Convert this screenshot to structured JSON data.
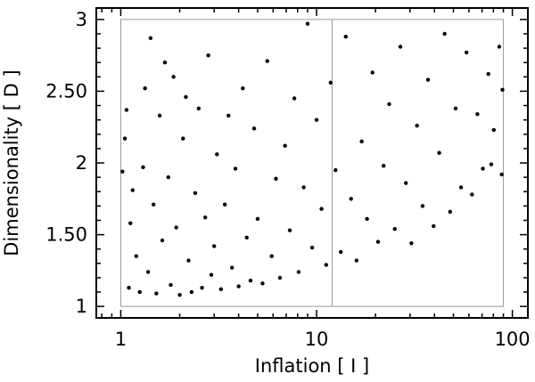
{
  "chart_data": {
    "type": "scatter",
    "title": "",
    "xlabel": "Inflation [ I ]",
    "ylabel": "Dimensionality [ D ]",
    "x_scale": "log",
    "xlim": [
      0.75,
      120
    ],
    "ylim": [
      0.92,
      3.08
    ],
    "x_ticks": [
      {
        "value": 1,
        "label": "1"
      },
      {
        "value": 10,
        "label": "10"
      },
      {
        "value": 100,
        "label": "100"
      }
    ],
    "y_ticks": [
      {
        "value": 1,
        "label": "1"
      },
      {
        "value": 1.5,
        "label": "1.50"
      },
      {
        "value": 2,
        "label": "2"
      },
      {
        "value": 2.5,
        "label": "2.50"
      },
      {
        "value": 3,
        "label": "3"
      }
    ],
    "grid": false,
    "legend": "none",
    "marker_color": "#000000",
    "reference_box": {
      "x": [
        1,
        90
      ],
      "y": [
        1,
        3
      ]
    },
    "reference_line_x": 12,
    "series": [
      {
        "points": [
          [
            1.02,
            1.94
          ],
          [
            1.05,
            2.17
          ],
          [
            1.07,
            2.37
          ],
          [
            1.1,
            1.13
          ],
          [
            1.12,
            1.58
          ],
          [
            1.15,
            1.81
          ],
          [
            1.2,
            1.35
          ],
          [
            1.25,
            1.1
          ],
          [
            1.3,
            1.97
          ],
          [
            1.33,
            2.52
          ],
          [
            1.38,
            1.24
          ],
          [
            1.42,
            2.87
          ],
          [
            1.47,
            1.71
          ],
          [
            1.52,
            1.09
          ],
          [
            1.58,
            2.33
          ],
          [
            1.63,
            1.46
          ],
          [
            1.68,
            2.7
          ],
          [
            1.75,
            1.9
          ],
          [
            1.8,
            1.15
          ],
          [
            1.86,
            2.6
          ],
          [
            1.92,
            1.55
          ],
          [
            2.0,
            1.08
          ],
          [
            2.08,
            2.17
          ],
          [
            2.15,
            2.46
          ],
          [
            2.22,
            1.32
          ],
          [
            2.3,
            1.1
          ],
          [
            2.4,
            1.79
          ],
          [
            2.5,
            2.38
          ],
          [
            2.6,
            1.13
          ],
          [
            2.7,
            1.62
          ],
          [
            2.8,
            2.75
          ],
          [
            2.9,
            1.22
          ],
          [
            3.0,
            1.42
          ],
          [
            3.1,
            2.06
          ],
          [
            3.25,
            1.12
          ],
          [
            3.4,
            1.71
          ],
          [
            3.55,
            2.33
          ],
          [
            3.7,
            1.27
          ],
          [
            3.85,
            1.96
          ],
          [
            4.0,
            1.14
          ],
          [
            4.2,
            2.52
          ],
          [
            4.4,
            1.48
          ],
          [
            4.6,
            1.18
          ],
          [
            4.8,
            2.24
          ],
          [
            5.0,
            1.61
          ],
          [
            5.3,
            1.16
          ],
          [
            5.6,
            2.71
          ],
          [
            5.9,
            1.35
          ],
          [
            6.2,
            1.89
          ],
          [
            6.5,
            1.2
          ],
          [
            6.9,
            2.12
          ],
          [
            7.3,
            1.53
          ],
          [
            7.7,
            2.45
          ],
          [
            8.1,
            1.24
          ],
          [
            8.6,
            1.83
          ],
          [
            9.0,
            2.97
          ],
          [
            9.5,
            1.41
          ],
          [
            10.0,
            2.3
          ],
          [
            10.6,
            1.68
          ],
          [
            11.2,
            1.29
          ],
          [
            11.8,
            2.56
          ],
          [
            12.5,
            1.95
          ],
          [
            13.3,
            1.38
          ],
          [
            14.1,
            2.88
          ],
          [
            15.0,
            1.75
          ],
          [
            16.0,
            1.32
          ],
          [
            17.0,
            2.15
          ],
          [
            18.1,
            1.61
          ],
          [
            19.3,
            2.63
          ],
          [
            20.6,
            1.45
          ],
          [
            22.0,
            1.98
          ],
          [
            23.5,
            2.41
          ],
          [
            25.1,
            1.54
          ],
          [
            26.8,
            2.81
          ],
          [
            28.6,
            1.86
          ],
          [
            30.5,
            1.44
          ],
          [
            32.6,
            2.26
          ],
          [
            34.8,
            1.7
          ],
          [
            37.1,
            2.58
          ],
          [
            39.6,
            1.56
          ],
          [
            42.3,
            2.07
          ],
          [
            45.1,
            2.9
          ],
          [
            48.1,
            1.66
          ],
          [
            51.3,
            2.38
          ],
          [
            54.7,
            1.83
          ],
          [
            58.3,
            2.77
          ],
          [
            62.2,
            1.78
          ],
          [
            66.3,
            2.34
          ],
          [
            70.7,
            1.96
          ],
          [
            75.4,
            2.62
          ],
          [
            80.4,
            2.23
          ],
          [
            85.7,
            2.81
          ],
          [
            89.0,
            2.51
          ],
          [
            88.2,
            1.92
          ],
          [
            78.0,
            1.99
          ]
        ]
      }
    ]
  }
}
